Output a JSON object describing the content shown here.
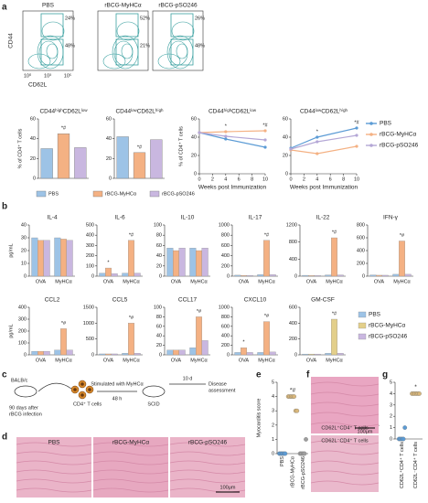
{
  "panel_labels": [
    "a",
    "b",
    "c",
    "d",
    "e",
    "f",
    "g"
  ],
  "flow": {
    "xlabel": "CD62L",
    "ylabel": "CD44",
    "xticks": [
      "10⁰",
      "10³",
      "10⁵"
    ],
    "plots": [
      {
        "title": "PBS",
        "gates": [
          "24%",
          "48%"
        ]
      },
      {
        "title": "rBCG-MyHCα",
        "gates": [
          "52%",
          "21%"
        ]
      },
      {
        "title": "rBCG-pSO246",
        "gates": [
          "26%",
          "48%"
        ]
      }
    ]
  },
  "chart_data": [
    {
      "type": "bar",
      "title": "CD44ʰⁱᵍʰCD62Lˡᵒʷ",
      "ylabel": "% of CD4⁺ T cells",
      "values": [
        30,
        45,
        31
      ],
      "colors": [
        "#9dc3e6",
        "#f4b183",
        "#c9b7e0"
      ],
      "ylim": [
        0,
        60
      ],
      "yticks": [
        0,
        20,
        40,
        60
      ],
      "annotations": [
        null,
        "*#",
        null
      ],
      "legend": [
        "PBS",
        "rBCG-MyHCα",
        "rBCG-pSO246"
      ]
    },
    {
      "type": "bar",
      "title": "CD44ˡᵒʷCD62Lʰⁱᵍʰ",
      "values": [
        42,
        26,
        39
      ],
      "colors": [
        "#9dc3e6",
        "#f4b183",
        "#c9b7e0"
      ],
      "ylim": [
        0,
        60
      ],
      "yticks": [
        0,
        20,
        40,
        60
      ],
      "annotations": [
        null,
        "*#",
        null
      ]
    },
    {
      "type": "line",
      "title": "CD44ʰⁱᵍʰCD62Lˡᵒʷ",
      "ylabel": "% of CD4⁺ T cells",
      "xlabel": "Weeks post Immunization",
      "x": [
        0,
        4,
        10
      ],
      "xlim": [
        0,
        10
      ],
      "xticks": [
        0,
        2,
        4,
        6,
        8,
        10
      ],
      "ylim": [
        0,
        60
      ],
      "yticks": [
        0,
        20,
        40,
        60
      ],
      "annotations": [
        null,
        "*",
        "*#"
      ],
      "series": [
        {
          "color": "#5b9bd5",
          "values": [
            45,
            38,
            29
          ]
        },
        {
          "color": "#f4b183",
          "values": [
            45,
            46,
            47
          ]
        },
        {
          "color": "#b4a7d6",
          "values": [
            45,
            41,
            37
          ]
        }
      ]
    },
    {
      "type": "line",
      "title": "CD44ˡᵒʷCD62Lʰⁱᵍʰ",
      "xlabel": "Weeks post Immunization",
      "x": [
        0,
        4,
        10
      ],
      "xlim": [
        0,
        10
      ],
      "xticks": [
        0,
        2,
        4,
        6,
        8,
        10
      ],
      "ylim": [
        0,
        60
      ],
      "yticks": [
        0,
        20,
        40,
        60
      ],
      "annotations": [
        null,
        "*",
        "*#"
      ],
      "series": [
        {
          "name": "PBS",
          "color": "#5b9bd5",
          "values": [
            28,
            40,
            50
          ]
        },
        {
          "name": "rBCG-MyHCα",
          "color": "#f4b183",
          "values": [
            26,
            22,
            30
          ]
        },
        {
          "name": "rBCG-pSO246",
          "color": "#b4a7d6",
          "values": [
            27,
            35,
            42
          ]
        }
      ]
    },
    {
      "type": "grouped_bar",
      "title": "IL-4",
      "ylabel": "pg/mL",
      "categories": [
        "OVA",
        "MyHCα"
      ],
      "ylim": [
        0,
        40
      ],
      "yticks": [
        0,
        10,
        20,
        30,
        40
      ],
      "series": [
        {
          "color": "#9dc3e6",
          "values": [
            30,
            30
          ]
        },
        {
          "color": "#f4b183",
          "values": [
            28,
            29
          ],
          "annotations": [
            null,
            null
          ]
        },
        {
          "color": "#c9b7e0",
          "values": [
            28,
            28
          ]
        }
      ]
    },
    {
      "type": "grouped_bar",
      "title": "IL-6",
      "categories": [
        "OVA",
        "MyHCα"
      ],
      "ylim": [
        0,
        500
      ],
      "yticks": [
        0,
        100,
        200,
        300,
        400,
        500
      ],
      "series": [
        {
          "color": "#9dc3e6",
          "values": [
            30,
            30
          ]
        },
        {
          "color": "#f4b183",
          "values": [
            80,
            350
          ],
          "annotations": [
            "*",
            "*#"
          ]
        },
        {
          "color": "#c9b7e0",
          "values": [
            25,
            30
          ]
        }
      ]
    },
    {
      "type": "grouped_bar",
      "title": "IL-10",
      "categories": [
        "OVA",
        "MyHCα"
      ],
      "ylim": [
        0,
        100
      ],
      "yticks": [
        0,
        20,
        40,
        60,
        80,
        100
      ],
      "series": [
        {
          "color": "#9dc3e6",
          "values": [
            55,
            55
          ]
        },
        {
          "color": "#f4b183",
          "values": [
            50,
            50
          ],
          "annotations": [
            null,
            null
          ]
        },
        {
          "color": "#c9b7e0",
          "values": [
            55,
            55
          ]
        }
      ]
    },
    {
      "type": "grouped_bar",
      "title": "IL-17",
      "categories": [
        "OVA",
        "MyHCα"
      ],
      "ylim": [
        0,
        1000
      ],
      "yticks": [
        0,
        200,
        400,
        600,
        800,
        1000
      ],
      "series": [
        {
          "color": "#9dc3e6",
          "values": [
            20,
            30
          ]
        },
        {
          "color": "#f4b183",
          "values": [
            15,
            700
          ],
          "annotations": [
            null,
            "*#"
          ]
        },
        {
          "color": "#c9b7e0",
          "values": [
            15,
            30
          ]
        }
      ]
    },
    {
      "type": "grouped_bar",
      "title": "IL-22",
      "categories": [
        "OVA",
        "MyHCα"
      ],
      "ylim": [
        0,
        1200
      ],
      "yticks": [
        0,
        400,
        800,
        1200
      ],
      "series": [
        {
          "color": "#9dc3e6",
          "values": [
            20,
            30
          ]
        },
        {
          "color": "#f4b183",
          "values": [
            15,
            900
          ],
          "annotations": [
            null,
            "*#"
          ]
        },
        {
          "color": "#c9b7e0",
          "values": [
            15,
            30
          ]
        }
      ]
    },
    {
      "type": "grouped_bar",
      "title": "IFN-γ",
      "categories": [
        "OVA",
        "MyHCα"
      ],
      "ylim": [
        0,
        800
      ],
      "yticks": [
        0,
        200,
        400,
        600,
        800
      ],
      "series": [
        {
          "color": "#9dc3e6",
          "values": [
            20,
            30
          ]
        },
        {
          "color": "#f4b183",
          "values": [
            15,
            550
          ],
          "annotations": [
            null,
            "*#"
          ]
        },
        {
          "color": "#c9b7e0",
          "values": [
            15,
            30
          ]
        }
      ]
    },
    {
      "type": "grouped_bar",
      "title": "CCL2",
      "ylabel": "pg/mL",
      "categories": [
        "OVA",
        "MyHCα"
      ],
      "ylim": [
        0,
        400
      ],
      "yticks": [
        0,
        100,
        200,
        300,
        400
      ],
      "series": [
        {
          "color": "#9dc3e6",
          "values": [
            30,
            40
          ]
        },
        {
          "color": "#f4b183",
          "values": [
            30,
            220
          ],
          "annotations": [
            null,
            "*#"
          ]
        },
        {
          "color": "#c9b7e0",
          "values": [
            30,
            40
          ]
        }
      ]
    },
    {
      "type": "grouped_bar",
      "title": "CCL5",
      "categories": [
        "OVA",
        "MyHCα"
      ],
      "ylim": [
        0,
        1500
      ],
      "yticks": [
        0,
        500,
        1000,
        1500
      ],
      "series": [
        {
          "color": "#9dc3e6",
          "values": [
            30,
            50
          ]
        },
        {
          "color": "#f4b183",
          "values": [
            30,
            1000
          ],
          "annotations": [
            null,
            "*#"
          ]
        },
        {
          "color": "#c9b7e0",
          "values": [
            30,
            50
          ]
        }
      ]
    },
    {
      "type": "grouped_bar",
      "title": "CCL17",
      "categories": [
        "OVA",
        "MyHCα"
      ],
      "ylim": [
        0,
        100
      ],
      "yticks": [
        0,
        20,
        40,
        60,
        80,
        100
      ],
      "series": [
        {
          "color": "#9dc3e6",
          "values": [
            10,
            15
          ]
        },
        {
          "color": "#f4b183",
          "values": [
            10,
            80
          ],
          "annotations": [
            null,
            "*#"
          ]
        },
        {
          "color": "#c9b7e0",
          "values": [
            10,
            30
          ]
        }
      ]
    },
    {
      "type": "grouped_bar",
      "title": "CXCL10",
      "categories": [
        "OVA",
        "MyHCα"
      ],
      "ylim": [
        0,
        1000
      ],
      "yticks": [
        0,
        200,
        400,
        600,
        800,
        1000
      ],
      "series": [
        {
          "color": "#9dc3e6",
          "values": [
            50,
            50
          ]
        },
        {
          "color": "#f4b183",
          "values": [
            150,
            700
          ],
          "annotations": [
            "*",
            "*#"
          ]
        },
        {
          "color": "#c9b7e0",
          "values": [
            50,
            60
          ]
        }
      ]
    },
    {
      "type": "grouped_bar",
      "title": "GM-CSF",
      "categories": [
        "OVA",
        "MyHCα"
      ],
      "ylim": [
        0,
        600
      ],
      "yticks": [
        0,
        200,
        400,
        600
      ],
      "series": [
        {
          "name": "PBS",
          "color": "#9dc3e6",
          "values": [
            10,
            20
          ]
        },
        {
          "name": "rBCG-MyHCα",
          "color": "#e3cf8a",
          "values": [
            10,
            450
          ],
          "annotations": [
            null,
            "*#"
          ]
        },
        {
          "name": "rBCG-pSO246",
          "color": "#c9b7e0",
          "values": [
            10,
            20
          ]
        }
      ]
    },
    {
      "type": "strip",
      "ylabel": "Myocarditis score",
      "categories": [
        "PBS",
        "rBCG-MyHCα",
        "rBCG-pSO246"
      ],
      "colors": [
        "#5b9bd5",
        "#d9b77a",
        "#9e9e9e"
      ],
      "ylim": [
        0,
        5
      ],
      "yticks": [
        0,
        1,
        2,
        3,
        4,
        5
      ],
      "points": [
        [
          0,
          0,
          0,
          0,
          0
        ],
        [
          4,
          4,
          4,
          4,
          4,
          3,
          3
        ],
        [
          0,
          0,
          0,
          0,
          1
        ]
      ],
      "annotations": [
        null,
        "*#",
        null
      ]
    },
    {
      "type": "strip",
      "ylabel": "Myocarditis score",
      "categories": [
        "CD62L⁺CD4⁺ T cells",
        "CD62L⁻CD4⁺ T cells"
      ],
      "colors": [
        "#5b9bd5",
        "#d9b77a"
      ],
      "ylim": [
        0,
        5
      ],
      "yticks": [
        0,
        1,
        2,
        3,
        4,
        5
      ],
      "points": [
        [
          0,
          0,
          0,
          0,
          1
        ],
        [
          4,
          4,
          4,
          4,
          4,
          4
        ]
      ],
      "annotations": [
        null,
        "*"
      ]
    }
  ],
  "diagram": {
    "mouse1": "BALB/c",
    "note": [
      "90 days after",
      "rBCG infection"
    ],
    "cells": "CD4⁺ T cells",
    "stim": "Stimulated with MyHCα",
    "time1": "48 h",
    "mouse2": "SCID",
    "time2": "10 d",
    "outcome": [
      "Disease",
      "assessment"
    ]
  },
  "histology_d": {
    "labels": [
      "PBS",
      "rBCG-MyHCα",
      "rBCG-pSO246"
    ],
    "scale": "100μm"
  },
  "histology_f": {
    "labels": [
      "CD62L⁺CD4⁺ T cells",
      "CD62L⁻CD4⁺ T cells"
    ],
    "scale": "100μm"
  }
}
